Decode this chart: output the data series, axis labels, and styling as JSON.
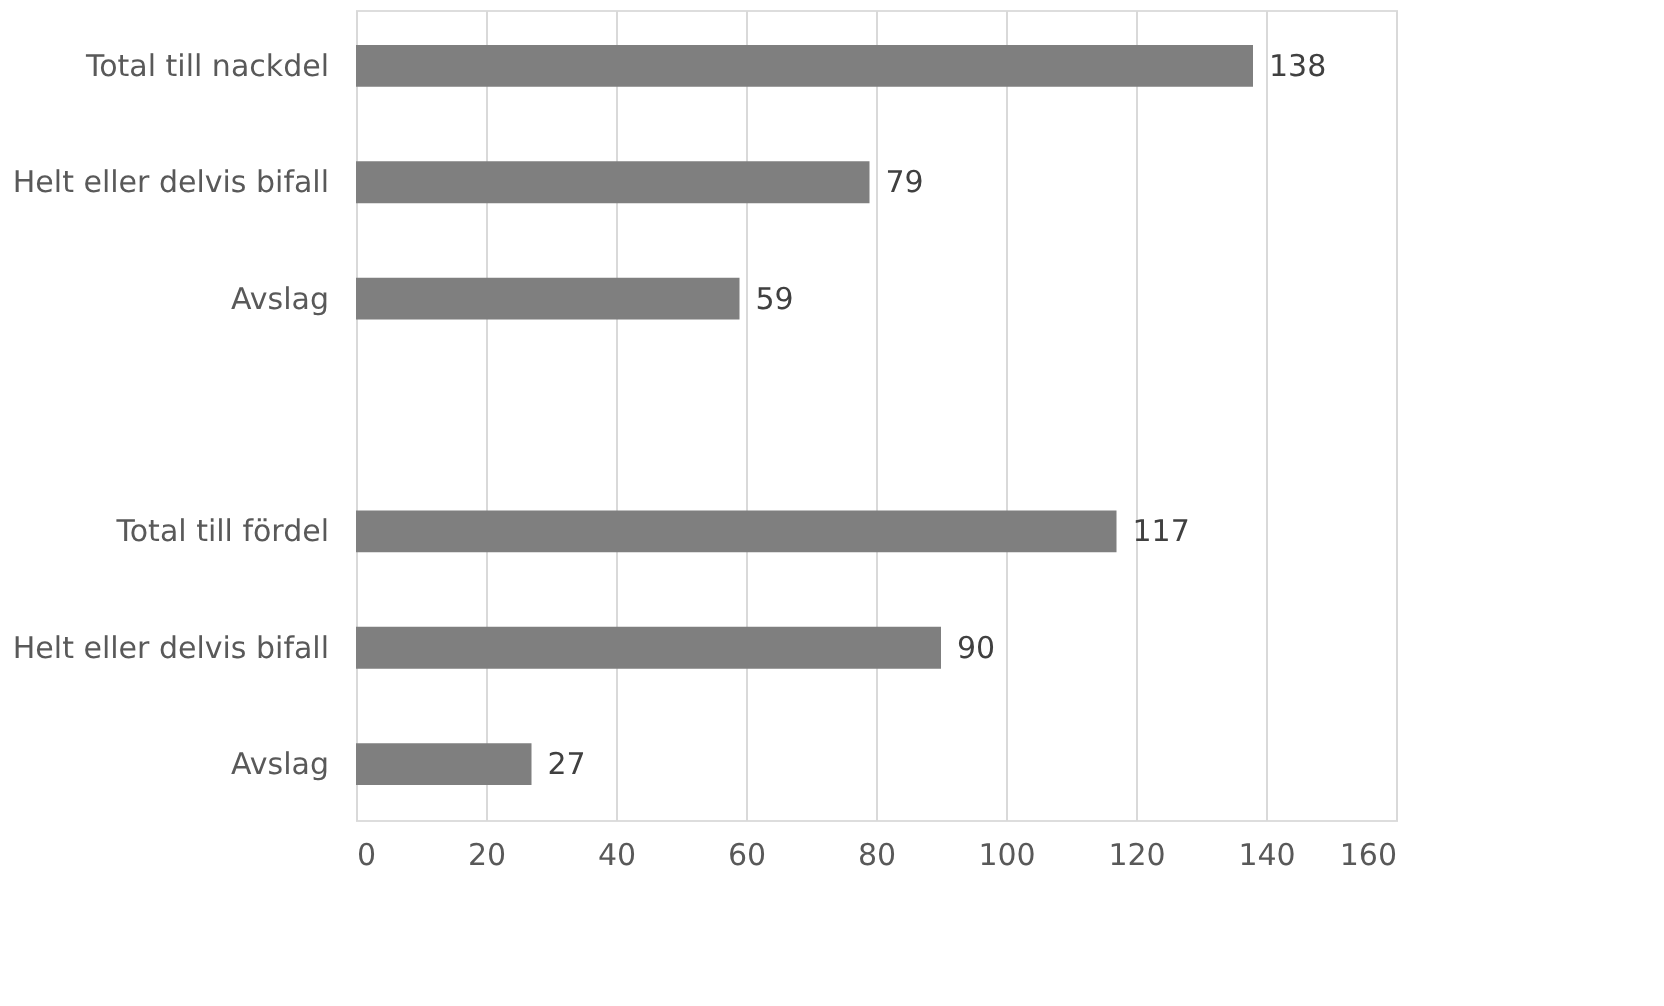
{
  "chart_data": {
    "type": "bar",
    "orientation": "horizontal",
    "categories": [
      "Total till nackdel",
      "Helt eller delvis bifall",
      "Avslag",
      null,
      "Total till fördel",
      "Helt eller delvis bifall",
      "Avslag"
    ],
    "values": [
      138,
      79,
      59,
      null,
      117,
      90,
      27
    ],
    "color": "#7f7f7f",
    "xlim": [
      0,
      160
    ],
    "xticks": [
      0,
      20,
      40,
      60,
      80,
      100,
      120,
      140,
      160
    ],
    "grid": "x",
    "data_labels": true
  }
}
